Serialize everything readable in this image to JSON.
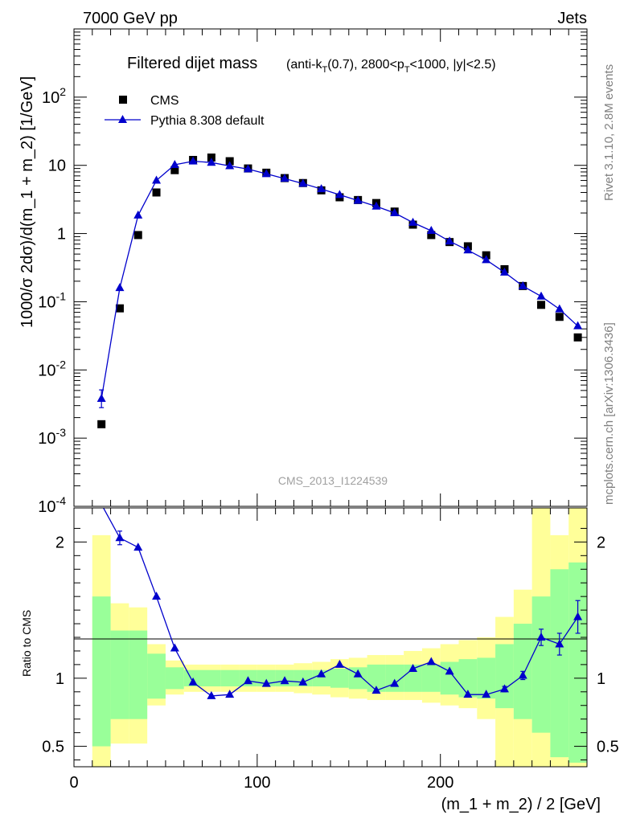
{
  "header": {
    "left": "7000 GeV pp",
    "right": "Jets",
    "side_events": "Rivet 3.1.10,  2.8M events",
    "side_url": "mcplots.cern.ch [arXiv:1306.3436]",
    "watermark": "CMS_2013_I1224539"
  },
  "chart_data": [
    {
      "type": "scatter",
      "panel": "main",
      "title": "Filtered dijet mass",
      "subtitle": "(anti-k_T(0.7), 2800<p_T<1000, |y|<2.5)",
      "ylabel": "1000/σ 2dσ)/d(m_1 + m_2) [1/GeV]",
      "yscale": "log",
      "ylim": [
        0.0001,
        1000
      ],
      "xlim": [
        0,
        280
      ],
      "y_ticks": [
        {
          "base": "10",
          "exp": "-4",
          "value": 0.0001
        },
        {
          "base": "10",
          "exp": "-3",
          "value": 0.001
        },
        {
          "base": "10",
          "exp": "-2",
          "value": 0.01
        },
        {
          "base": "10",
          "exp": "-1",
          "value": 0.1
        },
        {
          "base": "1",
          "exp": "",
          "value": 1
        },
        {
          "base": "10",
          "exp": "",
          "value": 10
        },
        {
          "base": "10",
          "exp": "2",
          "value": 100
        }
      ],
      "legend_position": "top-left",
      "series": [
        {
          "name": "CMS",
          "marker": "square",
          "color": "#000000",
          "x": [
            15,
            25,
            35,
            45,
            55,
            65,
            75,
            85,
            95,
            105,
            115,
            125,
            135,
            145,
            155,
            165,
            175,
            185,
            195,
            205,
            215,
            225,
            235,
            245,
            255,
            265,
            275
          ],
          "y": [
            0.0016,
            0.08,
            0.95,
            4.0,
            8.5,
            12.0,
            13.0,
            11.5,
            9.0,
            7.8,
            6.5,
            5.5,
            4.3,
            3.4,
            3.1,
            2.8,
            2.1,
            1.35,
            0.95,
            0.75,
            0.65,
            0.48,
            0.3,
            0.17,
            0.09,
            0.06,
            0.03
          ]
        },
        {
          "name": "Pythia 8.308 default",
          "marker": "triangle",
          "color": "#0000cc",
          "x": [
            15,
            25,
            35,
            45,
            55,
            65,
            75,
            85,
            95,
            105,
            115,
            125,
            135,
            145,
            155,
            165,
            175,
            185,
            195,
            205,
            215,
            225,
            235,
            245,
            255,
            265,
            275
          ],
          "y": [
            0.0038,
            0.16,
            1.85,
            6.0,
            10.2,
            11.5,
            11.0,
            9.8,
            8.8,
            7.5,
            6.4,
            5.4,
            4.5,
            3.7,
            3.05,
            2.5,
            2.0,
            1.45,
            1.1,
            0.77,
            0.57,
            0.41,
            0.27,
            0.17,
            0.12,
            0.078,
            0.044
          ],
          "err_up": [
            0.0013,
            0,
            0,
            0,
            0,
            0,
            0,
            0,
            0,
            0,
            0,
            0,
            0,
            0,
            0,
            0,
            0,
            0,
            0,
            0,
            0,
            0,
            0,
            0,
            0,
            0,
            0
          ],
          "err_down": [
            0.001,
            0,
            0,
            0,
            0,
            0,
            0,
            0,
            0,
            0,
            0,
            0,
            0,
            0,
            0,
            0,
            0,
            0,
            0,
            0,
            0,
            0,
            0,
            0,
            0,
            0,
            0
          ]
        }
      ]
    },
    {
      "type": "line",
      "panel": "ratio",
      "ylabel": "Ratio to CMS",
      "xlabel": "(m_1 + m_2) / 2 [GeV]",
      "ylim": [
        0.35,
        2.25
      ],
      "xlim": [
        0,
        280
      ],
      "x_ticks": [
        "0",
        "100",
        "200"
      ],
      "x_tick_values": [
        0,
        100,
        200
      ],
      "y_ticks": [
        "0.5",
        "1",
        "2"
      ],
      "y_tick_values": [
        0.5,
        1,
        2
      ],
      "bin_edges": [
        10,
        20,
        30,
        40,
        50,
        60,
        70,
        80,
        90,
        100,
        110,
        120,
        130,
        140,
        150,
        160,
        170,
        180,
        190,
        200,
        210,
        220,
        230,
        240,
        250,
        260,
        270,
        280
      ],
      "band_inner": {
        "color": "#99ff99",
        "low": [
          0.5,
          0.7,
          0.7,
          0.85,
          0.92,
          0.94,
          0.94,
          0.94,
          0.94,
          0.94,
          0.94,
          0.94,
          0.94,
          0.93,
          0.92,
          0.9,
          0.9,
          0.9,
          0.9,
          0.88,
          0.86,
          0.85,
          0.78,
          0.7,
          0.6,
          0.42,
          0.38
        ],
        "high": [
          1.6,
          1.35,
          1.35,
          1.18,
          1.08,
          1.06,
          1.06,
          1.06,
          1.06,
          1.06,
          1.06,
          1.06,
          1.06,
          1.07,
          1.08,
          1.1,
          1.1,
          1.1,
          1.1,
          1.12,
          1.14,
          1.15,
          1.25,
          1.4,
          1.6,
          1.8,
          1.85
        ]
      },
      "band_outer": {
        "color": "#ffff99",
        "low": [
          0.35,
          0.52,
          0.52,
          0.8,
          0.88,
          0.9,
          0.9,
          0.9,
          0.9,
          0.9,
          0.9,
          0.89,
          0.88,
          0.86,
          0.85,
          0.84,
          0.84,
          0.84,
          0.82,
          0.8,
          0.78,
          0.7,
          0.35,
          0.35,
          0.35,
          0.35,
          0.35
        ],
        "high": [
          2.05,
          1.55,
          1.52,
          1.25,
          1.13,
          1.1,
          1.1,
          1.1,
          1.1,
          1.1,
          1.1,
          1.11,
          1.12,
          1.14,
          1.15,
          1.17,
          1.17,
          1.2,
          1.22,
          1.25,
          1.28,
          1.3,
          1.45,
          1.65,
          2.25,
          2.05,
          2.25
        ]
      },
      "series": [
        {
          "name": "Pythia 8.308 default",
          "color": "#0000cc",
          "x": [
            25,
            35,
            45,
            55,
            65,
            75,
            85,
            95,
            105,
            115,
            125,
            135,
            145,
            155,
            165,
            175,
            185,
            195,
            205,
            215,
            225,
            235,
            245,
            255,
            265,
            275
          ],
          "y": [
            2.03,
            1.96,
            1.6,
            1.22,
            0.97,
            0.87,
            0.88,
            0.98,
            0.96,
            0.98,
            0.97,
            1.03,
            1.1,
            1.03,
            0.91,
            0.96,
            1.07,
            1.12,
            1.05,
            0.88,
            0.88,
            0.92,
            1.02,
            1.3,
            1.25,
            1.45
          ],
          "err": [
            0.05,
            0,
            0,
            0,
            0,
            0,
            0,
            0,
            0,
            0,
            0,
            0,
            0,
            0,
            0,
            0,
            0,
            0,
            0,
            0,
            0,
            0.02,
            0.03,
            0.06,
            0.08,
            0.12
          ]
        }
      ],
      "line_from": {
        "x": 10,
        "y": 2.4
      }
    }
  ]
}
